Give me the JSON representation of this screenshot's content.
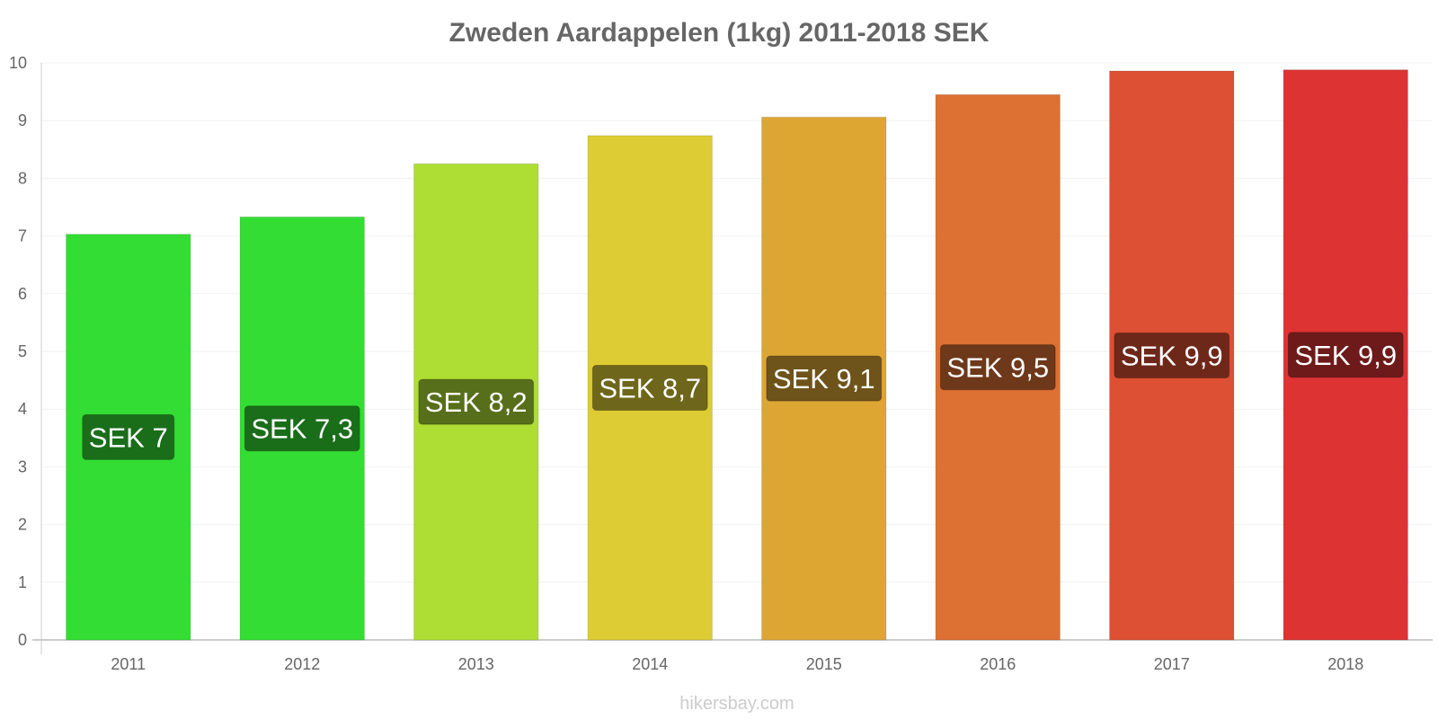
{
  "chart_data": {
    "type": "bar",
    "title": "Zweden Aardappelen (1kg) 2011-2018 SEK",
    "xlabel": "",
    "ylabel": "",
    "ylim": [
      0,
      10
    ],
    "yticks": [
      "0",
      "1",
      "2",
      "3",
      "4",
      "5",
      "6",
      "7",
      "8",
      "9",
      "10"
    ],
    "grid": true,
    "categories": [
      "2011",
      "2012",
      "2013",
      "2014",
      "2015",
      "2016",
      "2017",
      "2018"
    ],
    "values": [
      7.03,
      7.33,
      8.25,
      8.74,
      9.06,
      9.45,
      9.86,
      9.88
    ],
    "data_labels": [
      "SEK 7",
      "SEK 7,3",
      "SEK 8,2",
      "SEK 8,7",
      "SEK 9,1",
      "SEK 9,5",
      "SEK 9,9",
      "SEK 9,9"
    ],
    "bar_colors": [
      "#33dd33",
      "#33dd33",
      "#aede33",
      "#ddcc33",
      "#dda633",
      "#dd7033",
      "#dd5033",
      "#dd3333"
    ],
    "label_colors": [
      "#1a6e1a",
      "#1a6e1a",
      "#576f1a",
      "#6e661a",
      "#6e531a",
      "#6e381a",
      "#6e281a",
      "#6e1a1a"
    ],
    "credit": "hikersbay.com"
  }
}
